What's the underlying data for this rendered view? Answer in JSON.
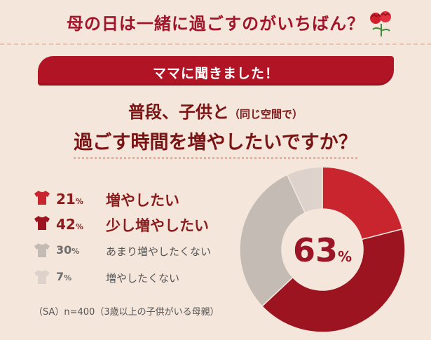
{
  "header": {
    "title": "母の日は一緒に過ごすのがいちばん？"
  },
  "banner": {
    "text": "ママに聞きました！"
  },
  "question": {
    "line1_main": "普段、子供と",
    "line1_paren": "（同じ空間で）",
    "line2": "過ごす時間を増やしたいですか？"
  },
  "legend": [
    {
      "value": "21",
      "unit": "%",
      "label": "増やしたい",
      "color": "#c8252f"
    },
    {
      "value": "42",
      "unit": "%",
      "label": "少し増やしたい",
      "color": "#9b1420"
    },
    {
      "value": "30",
      "unit": "%",
      "label": "あまり増やしたくない",
      "color": "#c4bcb4"
    },
    {
      "value": "7",
      "unit": "%",
      "label": "増やしたくない",
      "color": "#ddd3cc"
    }
  ],
  "note": "（SA）n=400（3歳以上の子供がいる母親）",
  "center": {
    "value": "63",
    "unit": "%"
  },
  "chart_data": {
    "type": "pie",
    "donut": true,
    "categories": [
      "増やしたい",
      "少し増やしたい",
      "あまり増やしたくない",
      "増やしたくない"
    ],
    "values": [
      21,
      42,
      30,
      7
    ],
    "colors": [
      "#c8252f",
      "#9b1420",
      "#c4bcb4",
      "#ddd3cc"
    ],
    "title": "過ごす時間を増やしたいですか？",
    "legend_position": "left",
    "center_text": "63%"
  }
}
